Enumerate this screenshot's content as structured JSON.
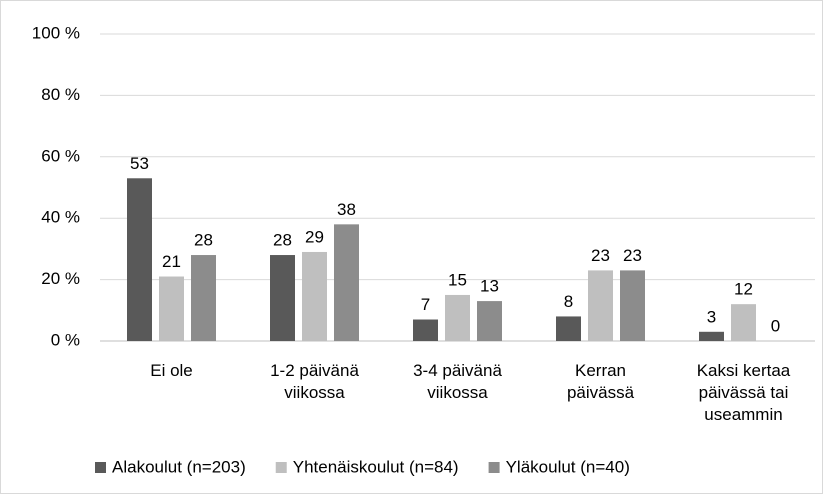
{
  "chart_data": {
    "type": "bar",
    "categories": [
      "Ei ole",
      "1-2 päivänä viikossa",
      "3-4 päivänä viikossa",
      "Kerran päivässä",
      "Kaksi kertaa päivässä tai useammin"
    ],
    "series": [
      {
        "name": "Alakoulut (n=203)",
        "color": "#595959",
        "values": [
          53,
          28,
          7,
          8,
          3
        ]
      },
      {
        "name": "Yhtenäiskoulut (n=84)",
        "color": "#bfbfbf",
        "values": [
          21,
          29,
          15,
          23,
          12
        ]
      },
      {
        "name": "Yläkoulut (n=40)",
        "color": "#8c8c8c",
        "values": [
          28,
          38,
          13,
          23,
          0
        ]
      }
    ],
    "ylim": [
      0,
      100
    ],
    "yticks": [
      {
        "value": 0,
        "label": "0 %"
      },
      {
        "value": 20,
        "label": "20 %"
      },
      {
        "value": 40,
        "label": "40 %"
      },
      {
        "value": 60,
        "label": "60 %"
      },
      {
        "value": 80,
        "label": "80 %"
      },
      {
        "value": 100,
        "label": "100 %"
      }
    ],
    "grid": true
  }
}
